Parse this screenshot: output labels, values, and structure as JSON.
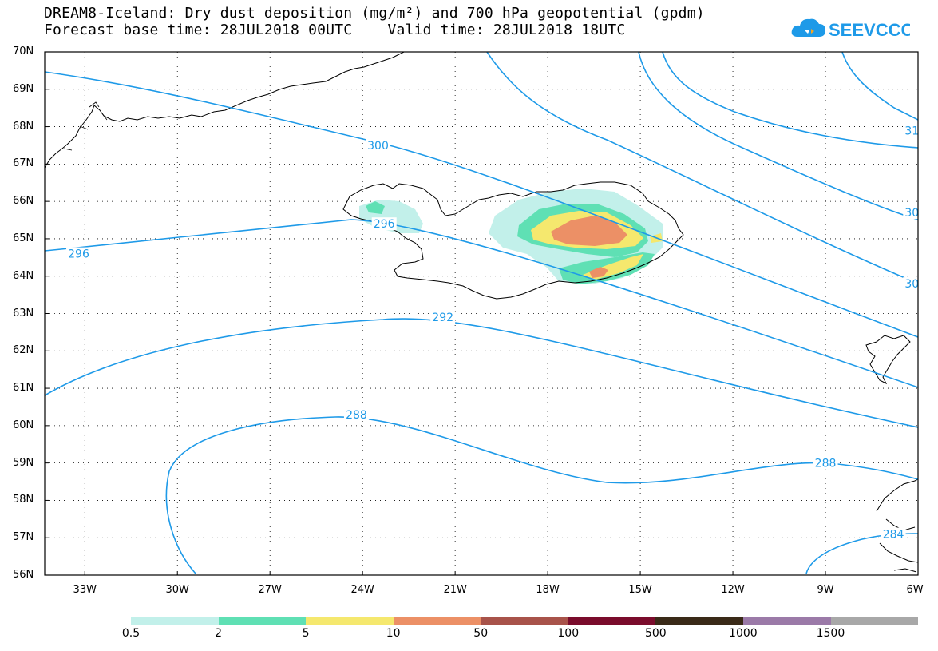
{
  "title": {
    "line1": "DREAM8-Iceland: Dry dust deposition (mg/m²) and 700 hPa geopotential (gpdm)",
    "line2": "Forecast base time: 28JUL2018 00UTC    Valid time: 28JUL2018 18UTC"
  },
  "logo": {
    "text": "SEEVCCC",
    "icon": "cloud-icon",
    "color": "#1e9ae8"
  },
  "map": {
    "lat_labels": [
      "70N",
      "69N",
      "68N",
      "67N",
      "66N",
      "65N",
      "64N",
      "63N",
      "62N",
      "61N",
      "60N",
      "59N",
      "58N",
      "57N",
      "56N"
    ],
    "lon_labels": [
      "33W",
      "30W",
      "27W",
      "24W",
      "21W",
      "18W",
      "15W",
      "12W",
      "9W",
      "6W"
    ],
    "contour_color": "#1e9ae8",
    "contour_labels": [
      {
        "text": "300",
        "lon": -23.5,
        "lat": 67.5
      },
      {
        "text": "296",
        "lon": -33.2,
        "lat": 64.6
      },
      {
        "text": "296",
        "lon": -23.3,
        "lat": 65.4
      },
      {
        "text": "292",
        "lon": -21.4,
        "lat": 62.9
      },
      {
        "text": "288",
        "lon": -24.2,
        "lat": 60.3
      },
      {
        "text": "288",
        "lon": -9.0,
        "lat": 59.0
      },
      {
        "text": "284",
        "lon": -6.8,
        "lat": 57.1
      },
      {
        "text": "31",
        "lon": -6.2,
        "lat": 67.9
      },
      {
        "text": "30",
        "lon": -6.2,
        "lat": 65.7
      },
      {
        "text": "30",
        "lon": -6.2,
        "lat": 63.8
      }
    ]
  },
  "legend": {
    "colors": [
      "#c2f0ea",
      "#5fe0b4",
      "#f5e86e",
      "#ec9066",
      "#a8534a",
      "#7a0c2c",
      "#3a2a18",
      "#9b7aa8",
      "#a8a8a8"
    ],
    "labels": [
      "0.5",
      "2",
      "5",
      "10",
      "50",
      "100",
      "500",
      "1000",
      "1500"
    ]
  }
}
